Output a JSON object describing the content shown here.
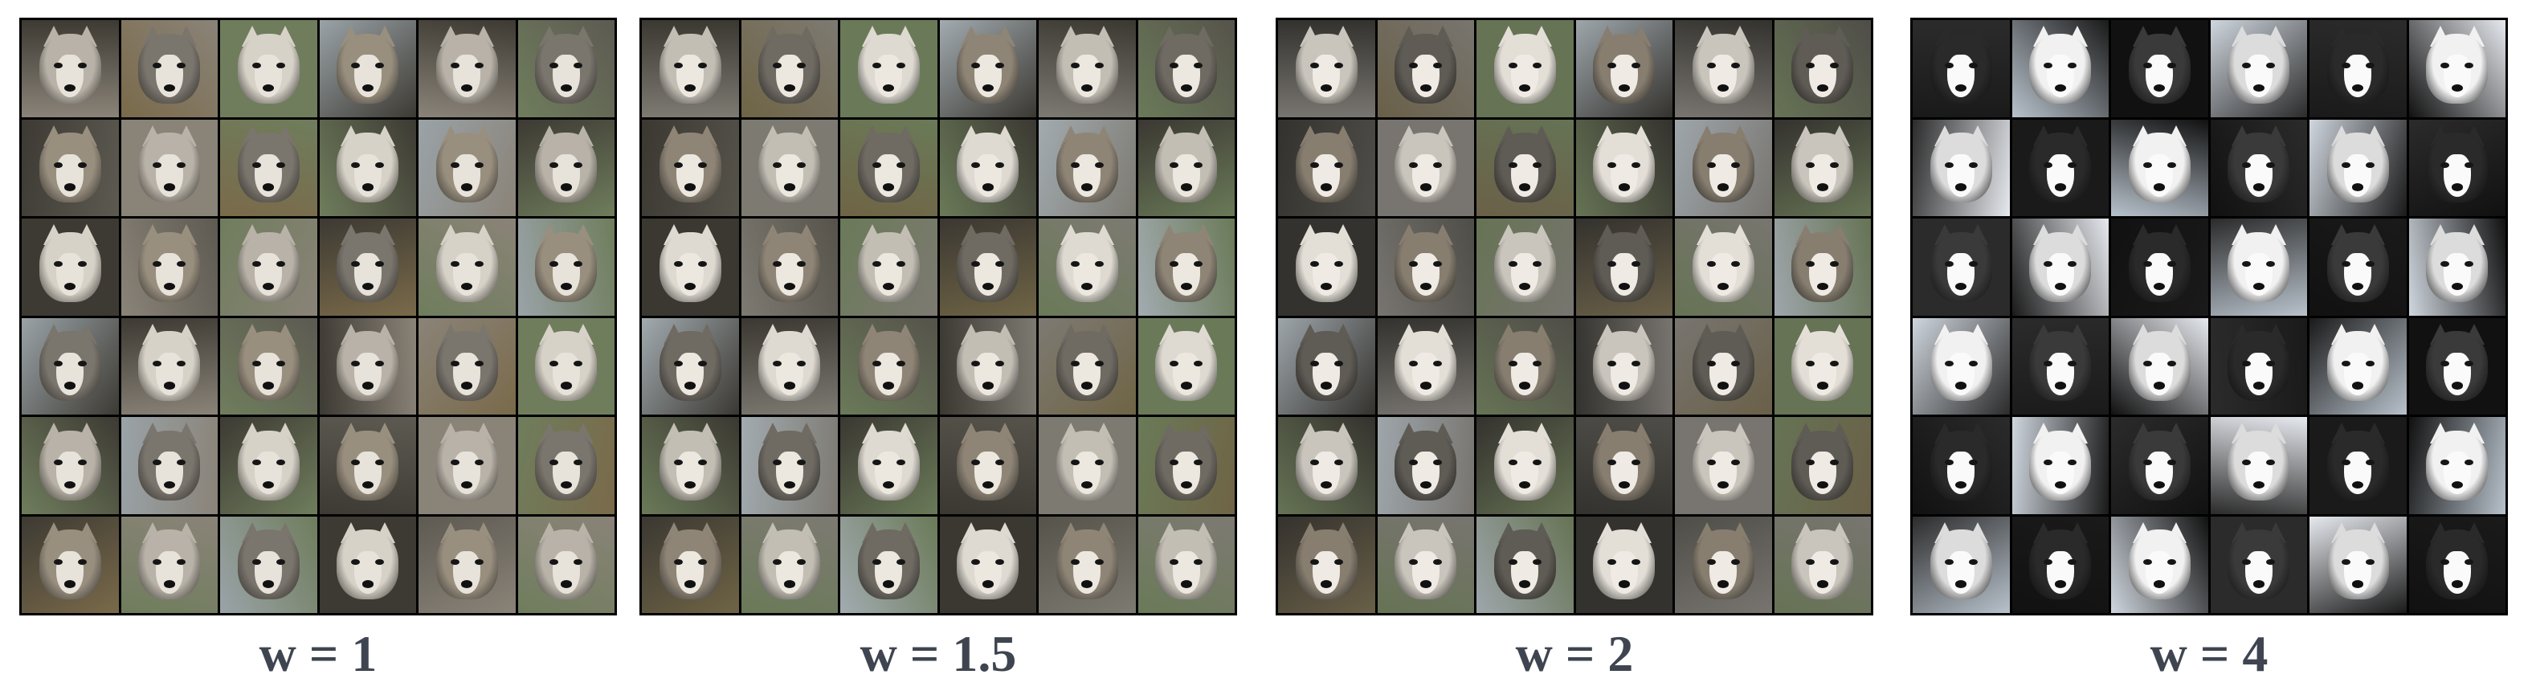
{
  "panels": [
    {
      "caption": "w = 1"
    },
    {
      "caption": "w = 1.5"
    },
    {
      "caption": "w = 2"
    },
    {
      "caption": "w = 4"
    }
  ],
  "grid": {
    "rows": 6,
    "cols": 6
  },
  "palettes": [
    {
      "bg": [
        "#8a8378",
        "#5d5a52",
        "#3d3a33",
        "#9aa3a8",
        "#6f7d5c",
        "#7a6a4a"
      ],
      "fur": [
        "#b8b2a8",
        "#7a756d",
        "#d7d2c8",
        "#998f7f"
      ],
      "mask": "#e8e3da",
      "dark": "#2a2824"
    },
    {
      "bg": [
        "#7d7a72",
        "#56534b",
        "#3b3832",
        "#a2abb0",
        "#6a7a58",
        "#6f6445"
      ],
      "fur": [
        "#c3beb4",
        "#6f6a62",
        "#dedad1",
        "#8f8576"
      ],
      "mask": "#ece8df",
      "dark": "#222"
    },
    {
      "bg": [
        "#787570",
        "#4f4d48",
        "#34322e",
        "#9ea6ab",
        "#667354",
        "#6a6048"
      ],
      "fur": [
        "#c9c5bc",
        "#5f5b55",
        "#e3dfd7",
        "#877e70"
      ],
      "mask": "#efebe4",
      "dark": "#1d1c1a"
    },
    {
      "bg": [
        "#1a1a1a",
        "#e6e9ee",
        "#2b2b2b",
        "#cfd6de",
        "#111111",
        "#b8c2cc"
      ],
      "fur": [
        "#2a2a2a",
        "#f1f1f1",
        "#3a3a3a",
        "#dcdcdc"
      ],
      "mask": "#fafafa",
      "dark": "#0c0c0c"
    }
  ]
}
